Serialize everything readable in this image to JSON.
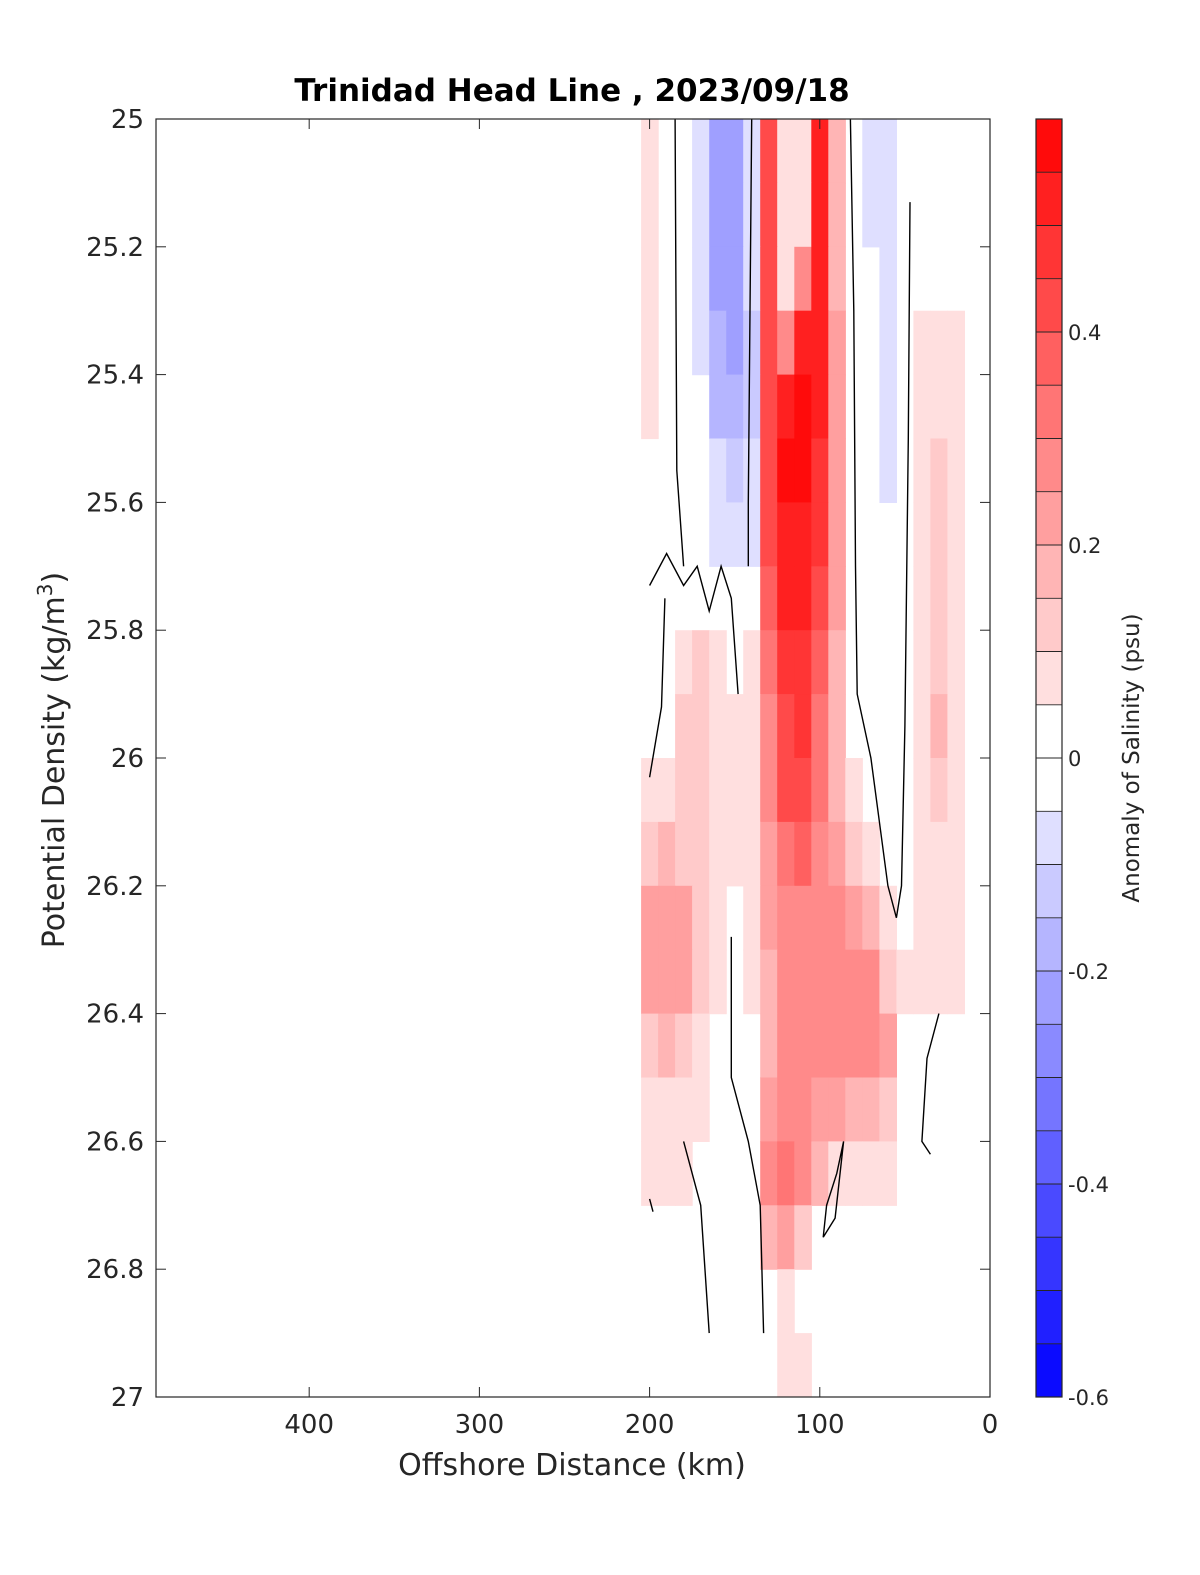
{
  "chart_data": {
    "type": "heatmap",
    "title": "Trinidad Head Line , 2023/09/18",
    "xlabel": "Offshore Distance (km)",
    "ylabel_main": "Potential Density (kg/m",
    "ylabel_sup": "3",
    "ylabel_close": ")",
    "colorbar_label": "Anomaly of Salinity (psu)",
    "xlim": [
      490,
      0
    ],
    "ylim": [
      25,
      27
    ],
    "x_reversed": true,
    "y_reversed": true,
    "xticks": [
      {
        "value": 400,
        "label": "400"
      },
      {
        "value": 300,
        "label": "300"
      },
      {
        "value": 200,
        "label": "200"
      },
      {
        "value": 100,
        "label": "100"
      },
      {
        "value": 0,
        "label": "0"
      }
    ],
    "yticks": [
      {
        "value": 25,
        "label": "25"
      },
      {
        "value": 25.2,
        "label": "25.2"
      },
      {
        "value": 25.4,
        "label": "25.4"
      },
      {
        "value": 25.6,
        "label": "25.6"
      },
      {
        "value": 25.8,
        "label": "25.8"
      },
      {
        "value": 26,
        "label": "26"
      },
      {
        "value": 26.2,
        "label": "26.2"
      },
      {
        "value": 26.4,
        "label": "26.4"
      },
      {
        "value": 26.6,
        "label": "26.6"
      },
      {
        "value": 26.8,
        "label": "26.8"
      },
      {
        "value": 27,
        "label": "27"
      }
    ],
    "colorbar": {
      "range": [
        -0.6,
        0.6
      ],
      "step": 0.05,
      "ticks": [
        {
          "value": 0.4,
          "label": "0.4"
        },
        {
          "value": 0.2,
          "label": "0.2"
        },
        {
          "value": 0,
          "label": "0"
        },
        {
          "value": -0.2,
          "label": "-0.2"
        },
        {
          "value": -0.4,
          "label": "-0.4"
        },
        {
          "value": -0.6,
          "label": "-0.6"
        }
      ],
      "colormap": "blue-white-red",
      "low_color": "#0000ff",
      "mid_color": "#ffffff",
      "high_color": "#ff0000"
    },
    "field": {
      "distance_km": [
        200,
        190,
        180,
        170,
        160,
        150,
        140,
        130,
        120,
        110,
        100,
        90,
        80,
        70,
        60,
        50,
        40,
        30,
        20
      ],
      "density": [
        25.0,
        25.1,
        25.2,
        25.3,
        25.4,
        25.5,
        25.6,
        25.7,
        25.8,
        25.9,
        26.0,
        26.1,
        26.2,
        26.3,
        26.4,
        26.5,
        26.6,
        26.7,
        26.8,
        26.9
      ],
      "anomaly_psu": [
        [
          0.08,
          0.04,
          0.01,
          -0.05,
          -0.2,
          -0.22,
          -0.08,
          0.4,
          0.05,
          0.05,
          0.5,
          0.15,
          0.02,
          -0.05,
          -0.1,
          -0.04,
          0.0,
          0.0,
          0.0
        ],
        [
          0.08,
          0.04,
          0.01,
          -0.06,
          -0.22,
          -0.24,
          -0.08,
          0.4,
          0.05,
          0.1,
          0.5,
          0.15,
          0.02,
          -0.05,
          -0.09,
          -0.04,
          0.0,
          0.0,
          0.0
        ],
        [
          0.08,
          0.04,
          0.01,
          -0.06,
          -0.2,
          -0.22,
          -0.1,
          0.4,
          0.05,
          0.25,
          0.52,
          0.18,
          0.03,
          -0.04,
          -0.08,
          -0.03,
          0.02,
          0.0,
          0.0
        ],
        [
          0.07,
          0.04,
          0.01,
          -0.05,
          -0.18,
          -0.2,
          -0.12,
          0.4,
          0.3,
          0.5,
          0.52,
          0.2,
          0.03,
          -0.03,
          -0.07,
          -0.02,
          0.07,
          0.07,
          0.05
        ],
        [
          0.07,
          0.04,
          0.01,
          -0.04,
          -0.15,
          -0.17,
          -0.12,
          0.4,
          0.55,
          0.56,
          0.5,
          0.22,
          0.03,
          -0.03,
          -0.06,
          -0.02,
          0.08,
          0.1,
          0.07
        ],
        [
          0.03,
          0.02,
          0.01,
          -0.03,
          -0.1,
          -0.12,
          -0.1,
          0.4,
          0.56,
          0.56,
          0.48,
          0.22,
          0.03,
          -0.02,
          -0.05,
          -0.02,
          0.08,
          0.12,
          0.07
        ],
        [
          0.0,
          0.0,
          0.0,
          -0.01,
          -0.06,
          -0.08,
          -0.05,
          0.4,
          0.52,
          0.55,
          0.45,
          0.22,
          0.03,
          -0.02,
          -0.04,
          -0.02,
          0.08,
          0.12,
          0.07
        ],
        [
          0.0,
          0.0,
          0.0,
          0.0,
          0.0,
          0.0,
          0.01,
          0.38,
          0.5,
          0.52,
          0.4,
          0.2,
          0.03,
          -0.01,
          -0.03,
          -0.01,
          0.08,
          0.12,
          0.07
        ],
        [
          0.0,
          0.02,
          0.1,
          0.12,
          0.06,
          0.04,
          0.05,
          0.32,
          0.45,
          0.48,
          0.38,
          0.18,
          0.03,
          0.0,
          -0.02,
          -0.01,
          0.08,
          0.12,
          0.07
        ],
        [
          0.02,
          0.04,
          0.12,
          0.14,
          0.08,
          0.06,
          0.08,
          0.28,
          0.42,
          0.45,
          0.35,
          0.16,
          0.04,
          0.0,
          -0.02,
          0.0,
          0.08,
          0.15,
          0.07
        ],
        [
          0.06,
          0.08,
          0.12,
          0.12,
          0.09,
          0.08,
          0.1,
          0.26,
          0.4,
          0.42,
          0.32,
          0.18,
          0.06,
          0.01,
          -0.03,
          0.0,
          0.08,
          0.12,
          0.07
        ],
        [
          0.14,
          0.15,
          0.14,
          0.12,
          0.08,
          0.06,
          0.1,
          0.22,
          0.34,
          0.38,
          0.3,
          0.24,
          0.14,
          0.06,
          0.01,
          0.01,
          0.08,
          0.1,
          0.07
        ],
        [
          0.2,
          0.24,
          0.22,
          0.14,
          0.06,
          0.03,
          0.08,
          0.2,
          0.28,
          0.3,
          0.28,
          0.28,
          0.24,
          0.18,
          0.06,
          0.03,
          0.08,
          0.1,
          0.07
        ],
        [
          0.2,
          0.22,
          0.22,
          0.14,
          0.05,
          0.02,
          0.06,
          0.18,
          0.26,
          0.27,
          0.26,
          0.28,
          0.28,
          0.26,
          0.14,
          0.06,
          0.08,
          0.1,
          0.07
        ],
        [
          0.14,
          0.16,
          0.14,
          0.08,
          0.03,
          0.01,
          0.03,
          0.18,
          0.26,
          0.27,
          0.25,
          0.26,
          0.28,
          0.28,
          0.2,
          0.04,
          0.0,
          0.0,
          0.0
        ],
        [
          0.08,
          0.1,
          0.1,
          0.05,
          0.02,
          0.0,
          0.02,
          0.2,
          0.28,
          0.28,
          0.24,
          0.2,
          0.18,
          0.16,
          0.12,
          0.03,
          0.0,
          -0.04,
          0.0
        ],
        [
          0.06,
          0.07,
          0.06,
          0.03,
          0.01,
          0.0,
          0.04,
          0.28,
          0.32,
          0.3,
          0.16,
          0.1,
          0.08,
          0.06,
          0.06,
          0.01,
          0.0,
          0.0,
          0.0
        ],
        [
          0.0,
          0.0,
          0.01,
          0.01,
          0.0,
          -0.03,
          0.02,
          0.15,
          0.24,
          0.12,
          0.03,
          0.02,
          0.02,
          0.01,
          0.0,
          0.0,
          0.0,
          0.0,
          0.0
        ],
        [
          0.0,
          0.0,
          0.0,
          0.0,
          0.0,
          0.0,
          0.0,
          0.03,
          0.08,
          0.02,
          0.0,
          0.0,
          0.0,
          0.0,
          0.0,
          0.0,
          0.0,
          0.0,
          0.0
        ],
        [
          0.0,
          0.0,
          0.0,
          0.0,
          0.02,
          0.0,
          0.0,
          0.0,
          0.05,
          0.08,
          0.0,
          0.0,
          0.0,
          0.0,
          0.0,
          0.0,
          0.0,
          0.0,
          0.0
        ]
      ]
    },
    "zero_contours": [
      [
        [
          185,
          25.0
        ],
        [
          184,
          25.55
        ],
        [
          180,
          25.7
        ]
      ],
      [
        [
          200,
          25.73
        ],
        [
          190,
          25.68
        ],
        [
          180,
          25.73
        ],
        [
          172,
          25.7
        ],
        [
          165,
          25.77
        ],
        [
          158,
          25.7
        ],
        [
          152,
          25.75
        ],
        [
          148,
          25.9
        ]
      ],
      [
        [
          140,
          25.0
        ],
        [
          142,
          25.6
        ],
        [
          142,
          25.7
        ]
      ],
      [
        [
          200,
          26.03
        ],
        [
          193,
          25.92
        ],
        [
          191,
          25.75
        ]
      ],
      [
        [
          82,
          25.0
        ],
        [
          80,
          25.3
        ],
        [
          79,
          25.7
        ],
        [
          78,
          25.9
        ],
        [
          70,
          26.0
        ],
        [
          60,
          26.2
        ],
        [
          55,
          26.25
        ],
        [
          52,
          26.2
        ],
        [
          50,
          25.95
        ],
        [
          48,
          25.5
        ],
        [
          47,
          25.13
        ]
      ],
      [
        [
          152,
          26.28
        ],
        [
          152,
          26.4
        ],
        [
          152,
          26.5
        ],
        [
          142,
          26.6
        ],
        [
          135,
          26.7
        ],
        [
          133,
          26.9
        ]
      ],
      [
        [
          180,
          26.6
        ],
        [
          170,
          26.7
        ],
        [
          165,
          26.9
        ]
      ],
      [
        [
          200,
          26.69
        ],
        [
          198,
          26.71
        ]
      ],
      [
        [
          98,
          26.75
        ],
        [
          91,
          26.72
        ],
        [
          86,
          26.6
        ],
        [
          90,
          26.65
        ],
        [
          96,
          26.7
        ],
        [
          98,
          26.75
        ]
      ],
      [
        [
          30,
          26.4
        ],
        [
          37,
          26.47
        ],
        [
          40,
          26.6
        ],
        [
          35,
          26.62
        ]
      ]
    ]
  }
}
